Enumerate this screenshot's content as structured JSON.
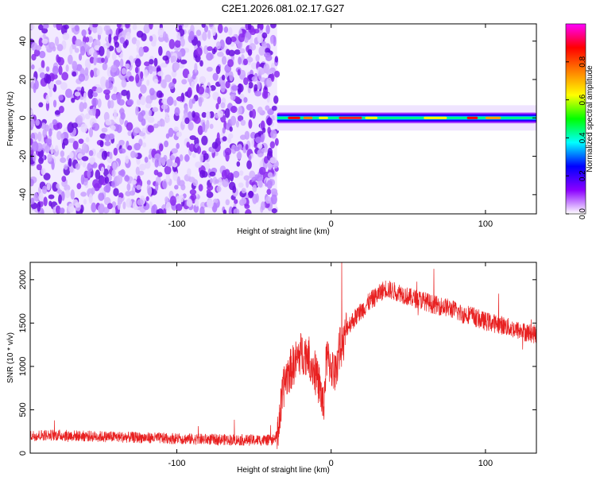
{
  "title": "C2E1.2026.081.02.17.G27",
  "chart_data": [
    {
      "type": "heatmap",
      "xlabel": "Height of straight line (km)",
      "ylabel": "Frequency (Hz)",
      "xlim": [
        -195,
        133
      ],
      "ylim": [
        -50,
        49
      ],
      "xticks": [
        -100,
        0,
        100
      ],
      "yticks": [
        -40,
        -20,
        0,
        20,
        40
      ],
      "noise_region_x": [
        -195,
        -35
      ],
      "signal_band": {
        "x_start": -35,
        "x_end": 133,
        "freq_center": 0,
        "freq_halfwidth": 3
      },
      "colorbar": {
        "label": "Normalized spectral amplitude",
        "range": [
          0,
          1
        ],
        "ticks": [
          0.0,
          0.2,
          0.4,
          0.6,
          0.8
        ],
        "colors": [
          "#ffffff",
          "#8b00ff",
          "#0000ff",
          "#00ffff",
          "#00ff00",
          "#ffff00",
          "#ff8000",
          "#ff0000",
          "#ff00ff"
        ]
      },
      "grid": false
    },
    {
      "type": "line",
      "xlabel": "Height of straight line (km)",
      "ylabel": "SNR (10 * v/v)",
      "xlim": [
        -195,
        133
      ],
      "ylim": [
        0,
        2200
      ],
      "xticks": [
        -100,
        0,
        100
      ],
      "yticks": [
        0,
        500,
        1000,
        1500,
        2000
      ],
      "color": "#e82020",
      "series": [
        {
          "x": [
            -195,
            -185,
            -175,
            -165,
            -155,
            -145,
            -135,
            -125,
            -115,
            -105,
            -95,
            -85,
            -75,
            -65,
            -55,
            -45,
            -38,
            -35,
            -30,
            -25,
            -20,
            -15,
            -10,
            -7,
            -5,
            -3,
            0,
            3,
            5,
            8,
            10,
            15,
            20,
            25,
            30,
            35,
            40,
            45,
            50,
            55,
            60,
            65,
            70,
            75,
            80,
            85,
            90,
            95,
            100,
            105,
            110,
            115,
            120,
            125,
            130,
            133
          ],
          "y": [
            200,
            210,
            205,
            200,
            195,
            190,
            185,
            180,
            175,
            170,
            165,
            160,
            158,
            155,
            150,
            150,
            150,
            200,
            850,
            1000,
            1150,
            1150,
            900,
            750,
            500,
            1100,
            1000,
            900,
            1200,
            1250,
            1450,
            1550,
            1650,
            1750,
            1820,
            1900,
            1870,
            1850,
            1800,
            1780,
            1760,
            1720,
            1700,
            1680,
            1650,
            1600,
            1600,
            1550,
            1520,
            1500,
            1480,
            1450,
            1420,
            1400,
            1380,
            1370
          ]
        }
      ],
      "grid": false
    }
  ]
}
